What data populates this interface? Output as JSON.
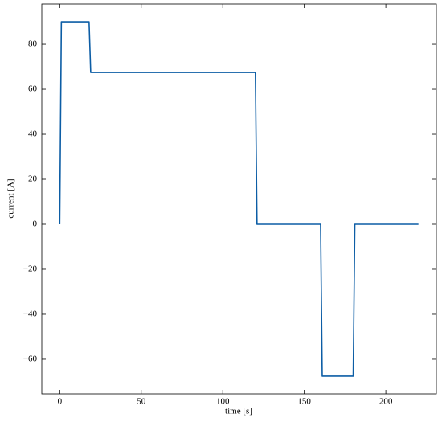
{
  "chart_data": {
    "type": "line",
    "xlabel": "time [s]",
    "ylabel": "current [A]",
    "x": [
      0,
      1,
      18,
      19,
      120,
      121,
      160,
      161,
      180,
      181,
      220
    ],
    "series": [
      {
        "color": "#0C5DA5",
        "values": [
          0,
          90,
          90,
          67.5,
          67.5,
          0,
          0,
          -67.5,
          -67.5,
          0,
          0
        ]
      }
    ],
    "xlim": [
      -11,
      231
    ],
    "xticks": [
      0,
      50,
      100,
      150,
      200
    ],
    "ylim": [
      -75.375,
      97.875
    ],
    "yticks": [
      {
        "value": -60,
        "label": "−60"
      },
      {
        "value": -40,
        "label": "−40"
      },
      {
        "value": -20,
        "label": "−20"
      },
      0,
      20,
      40,
      60,
      80
    ],
    "grid": false
  }
}
